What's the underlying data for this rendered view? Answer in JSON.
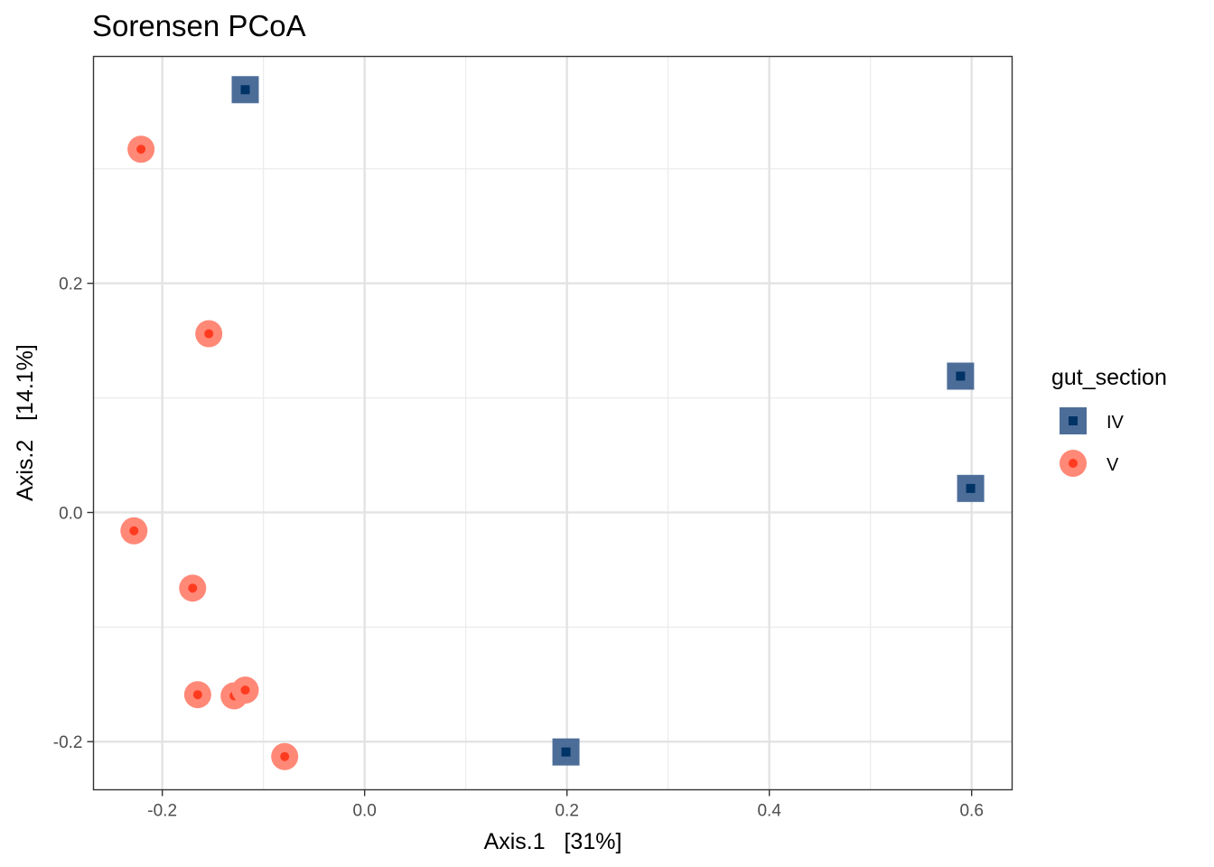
{
  "chart_data": {
    "type": "scatter",
    "title": "Sorensen PCoA",
    "xlabel": "Axis.1   [31%]",
    "ylabel": "Axis.2   [14.1%]",
    "xlim": [
      -0.268,
      0.64
    ],
    "ylim": [
      -0.242,
      0.398
    ],
    "x_ticks": [
      -0.2,
      0.0,
      0.2,
      0.4,
      0.6
    ],
    "x_tick_labels": [
      "-0.2",
      "0.0",
      "0.2",
      "0.4",
      "0.6"
    ],
    "y_ticks": [
      -0.2,
      0.0,
      0.2
    ],
    "y_tick_labels": [
      "-0.2",
      "0.0",
      "0.2"
    ],
    "grid": true,
    "legend": {
      "title": "gut_section",
      "position": "right"
    },
    "series": [
      {
        "name": "IV",
        "marker": "square",
        "color": "#003366",
        "halo_color": "#4d6d99",
        "points": [
          {
            "x": -0.118,
            "y": 0.369
          },
          {
            "x": 0.589,
            "y": 0.119
          },
          {
            "x": 0.599,
            "y": 0.021
          },
          {
            "x": 0.199,
            "y": -0.209
          }
        ]
      },
      {
        "name": "V",
        "marker": "circle",
        "color": "#ff3b1f",
        "halo_color": "#ff8877",
        "points": [
          {
            "x": -0.221,
            "y": 0.317
          },
          {
            "x": -0.154,
            "y": 0.156
          },
          {
            "x": -0.228,
            "y": -0.016
          },
          {
            "x": -0.17,
            "y": -0.066
          },
          {
            "x": -0.165,
            "y": -0.159
          },
          {
            "x": -0.129,
            "y": -0.16
          },
          {
            "x": -0.118,
            "y": -0.155
          },
          {
            "x": -0.079,
            "y": -0.213
          }
        ]
      }
    ]
  }
}
